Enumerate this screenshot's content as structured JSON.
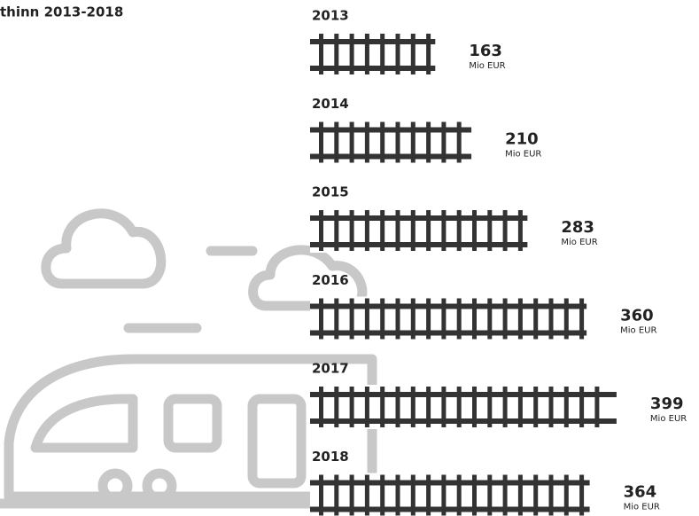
{
  "chart_data": {
    "type": "track-bar",
    "title": "thinn 2013-2018",
    "categories": [
      "2013",
      "2014",
      "2015",
      "2016",
      "2017",
      "2018"
    ],
    "values": [
      163,
      210,
      283,
      360,
      399,
      364
    ],
    "unit": "Mio EUR",
    "color": "#333333"
  }
}
